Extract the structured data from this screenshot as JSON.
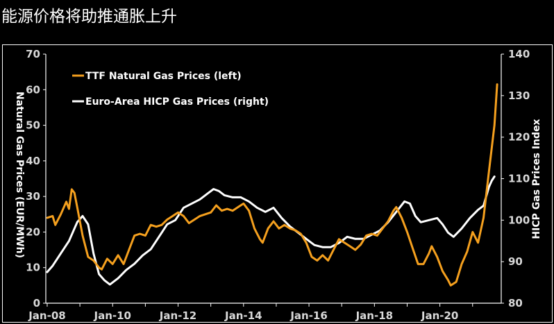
{
  "title": "能源价格将助推通胀上升",
  "colors": {
    "background": "#000000",
    "ttf": "#F5A01E",
    "hicp": "#FFFFFF",
    "axis": "#FFFFFF",
    "tick_text": "#D9D9D9"
  },
  "chart_data": {
    "type": "line",
    "title": "",
    "legend_placement": "top-left",
    "grid": false,
    "x_ticks": [
      "Jan-08",
      "Jan-10",
      "Jan-12",
      "Jan-14",
      "Jan-16",
      "Jan-18",
      "Jan-20"
    ],
    "x_range": [
      "2008-01",
      "2021-10"
    ],
    "y_left": {
      "label": "Natural Gas Prices (EUR/MWh)",
      "range": [
        0,
        70
      ],
      "ticks": [
        "0",
        "10",
        "20",
        "30",
        "40",
        "50",
        "60",
        "70"
      ]
    },
    "y_right": {
      "label": "HICP Gas Prices Index",
      "range": [
        80,
        140
      ],
      "ticks": [
        "80",
        "90",
        "100",
        "110",
        "120",
        "130",
        "140"
      ]
    },
    "series": [
      {
        "name": "TTF Natural Gas Prices (left)",
        "axis": "left",
        "points": [
          [
            "2008-01",
            24
          ],
          [
            "2008-03",
            24.5
          ],
          [
            "2008-04",
            22
          ],
          [
            "2008-06",
            25
          ],
          [
            "2008-08",
            28.5
          ],
          [
            "2008-09",
            26.5
          ],
          [
            "2008-10",
            32
          ],
          [
            "2008-11",
            31
          ],
          [
            "2008-12",
            27
          ],
          [
            "2009-02",
            19
          ],
          [
            "2009-04",
            13
          ],
          [
            "2009-06",
            12
          ],
          [
            "2009-08",
            10
          ],
          [
            "2009-09",
            9.5
          ],
          [
            "2009-11",
            12.5
          ],
          [
            "2010-01",
            11
          ],
          [
            "2010-03",
            13.5
          ],
          [
            "2010-05",
            11
          ],
          [
            "2010-07",
            15
          ],
          [
            "2010-09",
            19
          ],
          [
            "2010-11",
            19.5
          ],
          [
            "2011-01",
            19
          ],
          [
            "2011-03",
            22
          ],
          [
            "2011-05",
            21.5
          ],
          [
            "2011-07",
            22
          ],
          [
            "2011-09",
            23.5
          ],
          [
            "2011-11",
            24.5
          ],
          [
            "2012-01",
            25.5
          ],
          [
            "2012-03",
            24.5
          ],
          [
            "2012-05",
            22.5
          ],
          [
            "2012-07",
            23.5
          ],
          [
            "2012-09",
            24.5
          ],
          [
            "2012-11",
            25
          ],
          [
            "2013-01",
            25.5
          ],
          [
            "2013-03",
            27.5
          ],
          [
            "2013-05",
            26
          ],
          [
            "2013-07",
            26.5
          ],
          [
            "2013-09",
            26
          ],
          [
            "2013-11",
            27
          ],
          [
            "2014-01",
            28
          ],
          [
            "2014-03",
            26
          ],
          [
            "2014-05",
            21
          ],
          [
            "2014-07",
            18
          ],
          [
            "2014-08",
            17
          ],
          [
            "2014-10",
            21
          ],
          [
            "2014-12",
            23
          ],
          [
            "2015-02",
            21
          ],
          [
            "2015-04",
            22
          ],
          [
            "2015-06",
            21
          ],
          [
            "2015-08",
            20.5
          ],
          [
            "2015-10",
            19.5
          ],
          [
            "2015-12",
            17
          ],
          [
            "2016-02",
            13
          ],
          [
            "2016-04",
            12
          ],
          [
            "2016-06",
            13.5
          ],
          [
            "2016-08",
            12
          ],
          [
            "2016-10",
            15
          ],
          [
            "2016-12",
            18
          ],
          [
            "2017-02",
            17
          ],
          [
            "2017-04",
            16
          ],
          [
            "2017-06",
            15
          ],
          [
            "2017-08",
            16.5
          ],
          [
            "2017-10",
            19
          ],
          [
            "2017-12",
            19.5
          ],
          [
            "2018-02",
            19
          ],
          [
            "2018-04",
            21
          ],
          [
            "2018-06",
            23
          ],
          [
            "2018-08",
            26
          ],
          [
            "2018-09",
            27
          ],
          [
            "2018-11",
            24
          ],
          [
            "2019-01",
            20
          ],
          [
            "2019-03",
            15.5
          ],
          [
            "2019-05",
            11
          ],
          [
            "2019-07",
            11
          ],
          [
            "2019-09",
            14
          ],
          [
            "2019-10",
            16
          ],
          [
            "2019-12",
            13
          ],
          [
            "2020-02",
            9
          ],
          [
            "2020-04",
            6.5
          ],
          [
            "2020-05",
            5
          ],
          [
            "2020-07",
            6
          ],
          [
            "2020-09",
            11
          ],
          [
            "2020-11",
            14.5
          ],
          [
            "2021-01",
            20
          ],
          [
            "2021-03",
            17
          ],
          [
            "2021-05",
            24
          ],
          [
            "2021-07",
            37
          ],
          [
            "2021-09",
            50
          ],
          [
            "2021-10",
            61.5
          ]
        ]
      },
      {
        "name": "Euro-Area HICP Gas Prices (right)",
        "axis": "right",
        "points": [
          [
            "2008-01",
            87.5
          ],
          [
            "2008-03",
            89
          ],
          [
            "2008-06",
            92
          ],
          [
            "2008-09",
            95
          ],
          [
            "2008-12",
            99.5
          ],
          [
            "2009-02",
            101
          ],
          [
            "2009-04",
            99
          ],
          [
            "2009-06",
            92
          ],
          [
            "2009-08",
            87
          ],
          [
            "2009-10",
            85.5
          ],
          [
            "2009-12",
            84.5
          ],
          [
            "2010-03",
            86
          ],
          [
            "2010-06",
            88
          ],
          [
            "2010-09",
            89.5
          ],
          [
            "2010-12",
            91.5
          ],
          [
            "2011-03",
            93
          ],
          [
            "2011-06",
            96
          ],
          [
            "2011-09",
            99
          ],
          [
            "2011-12",
            100
          ],
          [
            "2012-03",
            103
          ],
          [
            "2012-06",
            104
          ],
          [
            "2012-09",
            105
          ],
          [
            "2012-12",
            106.5
          ],
          [
            "2013-02",
            107.5
          ],
          [
            "2013-04",
            107
          ],
          [
            "2013-06",
            106
          ],
          [
            "2013-09",
            105.5
          ],
          [
            "2013-12",
            105.5
          ],
          [
            "2014-03",
            104.5
          ],
          [
            "2014-06",
            103
          ],
          [
            "2014-09",
            102
          ],
          [
            "2014-12",
            103
          ],
          [
            "2015-03",
            100.5
          ],
          [
            "2015-06",
            98.5
          ],
          [
            "2015-09",
            97
          ],
          [
            "2015-12",
            95.5
          ],
          [
            "2016-03",
            94
          ],
          [
            "2016-06",
            93.5
          ],
          [
            "2016-09",
            93.5
          ],
          [
            "2016-12",
            94.5
          ],
          [
            "2017-03",
            96
          ],
          [
            "2017-06",
            95.5
          ],
          [
            "2017-09",
            95.5
          ],
          [
            "2017-12",
            96.5
          ],
          [
            "2018-03",
            97.5
          ],
          [
            "2018-06",
            99.5
          ],
          [
            "2018-09",
            102
          ],
          [
            "2018-12",
            104.5
          ],
          [
            "2019-02",
            104
          ],
          [
            "2019-04",
            101
          ],
          [
            "2019-06",
            99.5
          ],
          [
            "2019-09",
            100
          ],
          [
            "2019-12",
            100.5
          ],
          [
            "2020-02",
            99
          ],
          [
            "2020-04",
            97
          ],
          [
            "2020-06",
            96
          ],
          [
            "2020-09",
            98
          ],
          [
            "2020-12",
            100.5
          ],
          [
            "2021-03",
            102.5
          ],
          [
            "2021-05",
            103.5
          ],
          [
            "2021-07",
            108
          ],
          [
            "2021-08",
            109.5
          ],
          [
            "2021-09",
            110.5
          ]
        ]
      }
    ]
  }
}
